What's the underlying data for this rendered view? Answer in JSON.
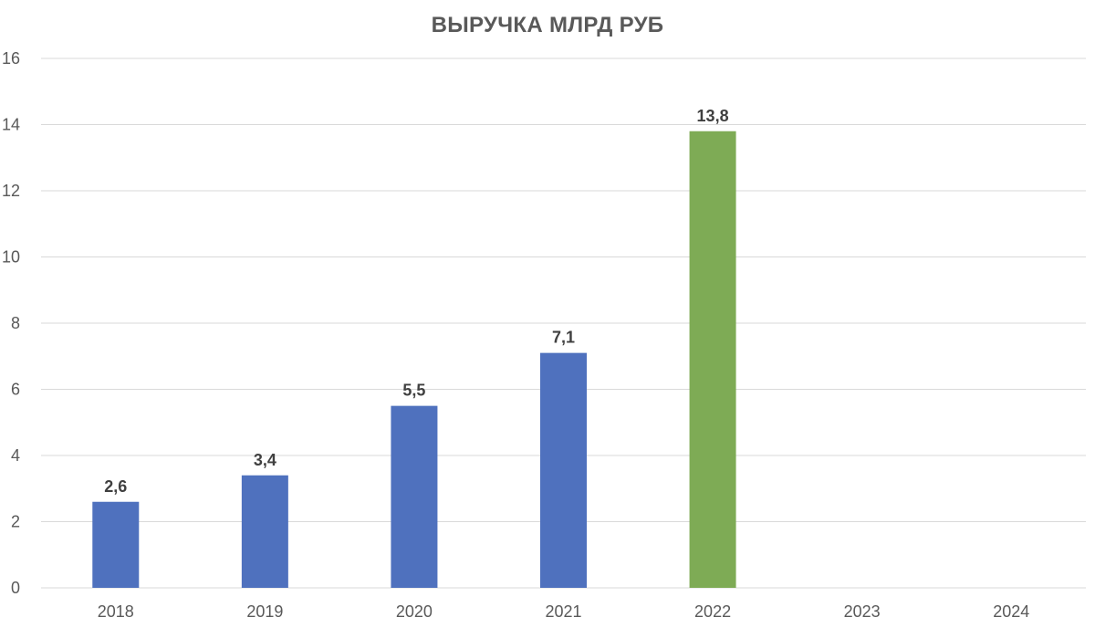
{
  "chart_data": {
    "type": "bar",
    "title": "ВЫРУЧКА МЛРД РУБ",
    "categories": [
      "2018",
      "2019",
      "2020",
      "2021",
      "2022",
      "2023",
      "2024"
    ],
    "values": [
      2.6,
      3.4,
      5.5,
      7.1,
      13.8,
      null,
      null
    ],
    "data_labels": [
      "2,6",
      "3,4",
      "5,5",
      "7,1",
      "13,8",
      "",
      ""
    ],
    "bar_colors": [
      "#4f71be",
      "#4f71be",
      "#4f71be",
      "#4f71be",
      "#7eab55",
      "#4f71be",
      "#4f71be"
    ],
    "ylim": [
      0,
      16
    ],
    "yticks": [
      0,
      2,
      4,
      6,
      8,
      10,
      12,
      14,
      16
    ],
    "xlabel": "",
    "ylabel": "",
    "grid": true,
    "legend": "none"
  }
}
